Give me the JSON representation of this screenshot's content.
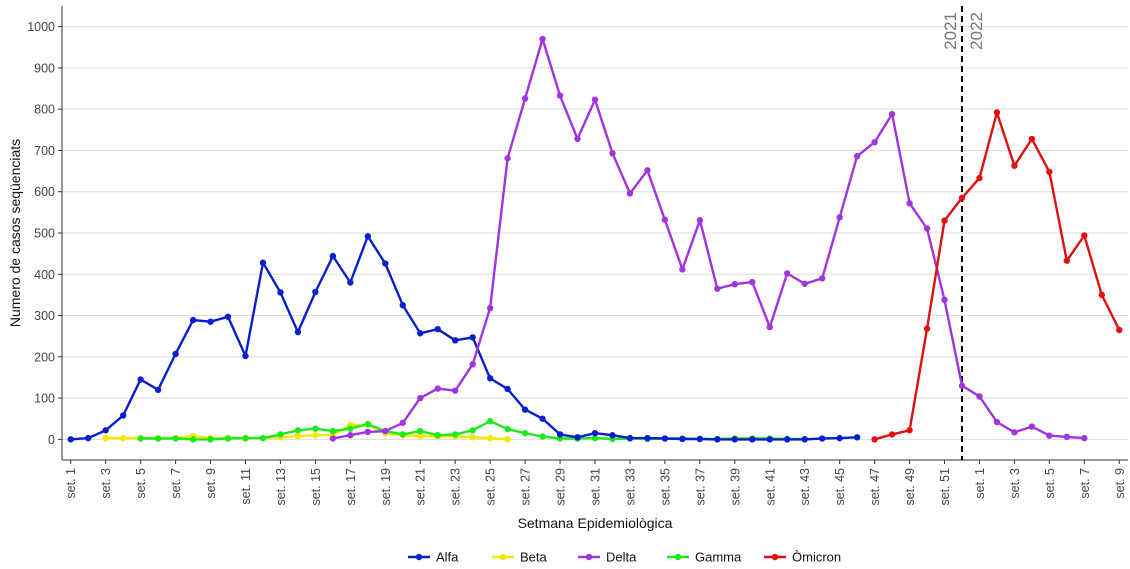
{
  "chart_data": {
    "type": "line",
    "title": "",
    "xlabel": "Setmana Epidemiològica",
    "ylabel": "Numero de casos seqüenciats",
    "ylim": [
      -50,
      1050
    ],
    "yticks": [
      0,
      100,
      200,
      300,
      400,
      500,
      600,
      700,
      800,
      900,
      1000
    ],
    "xtick_labels": [
      "set. 1",
      "set. 3",
      "set. 5",
      "set. 7",
      "set. 9",
      "set. 11",
      "set. 13",
      "set. 15",
      "set. 17",
      "set. 19",
      "set. 21",
      "set. 23",
      "set. 25",
      "set. 27",
      "set. 29",
      "set. 31",
      "set. 33",
      "set. 35",
      "set. 37",
      "set. 39",
      "set. 41",
      "set. 43",
      "set. 45",
      "set. 47",
      "set. 49",
      "set. 51",
      "set. 1",
      "set. 3",
      "set. 5",
      "set. 7",
      "set. 9"
    ],
    "grid": true,
    "legend_position": "bottom",
    "annotations": {
      "year_divider_after_week": 52,
      "year_left": "2021",
      "year_right": "2022"
    },
    "series": [
      {
        "name": "Alfa",
        "color": "#0a1fcc",
        "weeks": [
          1,
          2,
          3,
          4,
          5,
          6,
          7,
          8,
          9,
          10,
          11,
          12,
          13,
          14,
          15,
          16,
          17,
          18,
          19,
          20,
          21,
          22,
          23,
          24,
          25,
          26,
          27,
          28,
          29,
          30,
          31,
          32,
          33,
          34,
          35,
          36,
          37,
          38,
          39,
          40,
          41,
          42,
          43,
          44,
          45,
          46
        ],
        "values": [
          0,
          3,
          22,
          58,
          145,
          120,
          207,
          289,
          285,
          297,
          202,
          428,
          356,
          260,
          357,
          444,
          380,
          492,
          426,
          325,
          257,
          267,
          240,
          247,
          148,
          122,
          72,
          50,
          12,
          5,
          15,
          10,
          3,
          3,
          2,
          1,
          1,
          0,
          0,
          0,
          0,
          0,
          0,
          2,
          3,
          5
        ]
      },
      {
        "name": "Beta",
        "color": "#f5e800",
        "weeks": [
          3,
          4,
          5,
          6,
          7,
          8,
          9,
          10,
          11,
          12,
          13,
          14,
          15,
          16,
          17,
          18,
          19,
          20,
          21,
          22,
          23,
          24,
          25,
          26
        ],
        "values": [
          3,
          3,
          3,
          3,
          3,
          8,
          3,
          3,
          2,
          3,
          5,
          8,
          10,
          10,
          35,
          35,
          15,
          10,
          8,
          7,
          7,
          5,
          3,
          0
        ]
      },
      {
        "name": "Delta",
        "color": "#a035e0",
        "weeks": [
          16,
          17,
          18,
          19,
          20,
          21,
          22,
          23,
          24,
          25,
          26,
          27,
          28,
          29,
          30,
          31,
          32,
          33,
          34,
          35,
          36,
          37,
          38,
          39,
          40,
          41,
          42,
          43,
          44,
          45,
          46,
          47,
          48,
          49,
          50,
          51,
          52,
          53,
          54,
          55,
          56,
          57,
          58,
          59
        ],
        "values": [
          2,
          10,
          18,
          20,
          40,
          100,
          123,
          118,
          182,
          318,
          681,
          826,
          970,
          833,
          728,
          823,
          693,
          596,
          652,
          532,
          412,
          531,
          365,
          376,
          381,
          272,
          402,
          377,
          390,
          538,
          686,
          720,
          788,
          572,
          511,
          338,
          130,
          104,
          42,
          17,
          31,
          9,
          6,
          3
        ]
      },
      {
        "name": "Gamma",
        "color": "#1ee81e",
        "weeks": [
          5,
          6,
          7,
          8,
          9,
          10,
          11,
          12,
          13,
          14,
          15,
          16,
          17,
          18,
          19,
          20,
          21,
          22,
          23,
          24,
          25,
          26,
          27,
          28,
          29,
          30,
          31,
          32,
          33,
          34,
          35,
          36,
          37,
          38,
          39,
          40,
          41,
          42,
          43
        ],
        "values": [
          2,
          2,
          2,
          0,
          0,
          2,
          3,
          3,
          12,
          22,
          26,
          20,
          26,
          37,
          20,
          12,
          20,
          10,
          12,
          22,
          44,
          25,
          15,
          7,
          2,
          2,
          3,
          1,
          2,
          1,
          2,
          2,
          1,
          1,
          2,
          2,
          2,
          1,
          1
        ]
      },
      {
        "name": "Òmicron",
        "color": "#e01010",
        "weeks": [
          47,
          48,
          49,
          50,
          51,
          52,
          53,
          54,
          55,
          56,
          57,
          58,
          59,
          60,
          61
        ],
        "values": [
          0,
          12,
          22,
          268,
          530,
          585,
          633,
          792,
          663,
          728,
          648,
          433,
          494,
          350,
          265
        ]
      }
    ]
  }
}
